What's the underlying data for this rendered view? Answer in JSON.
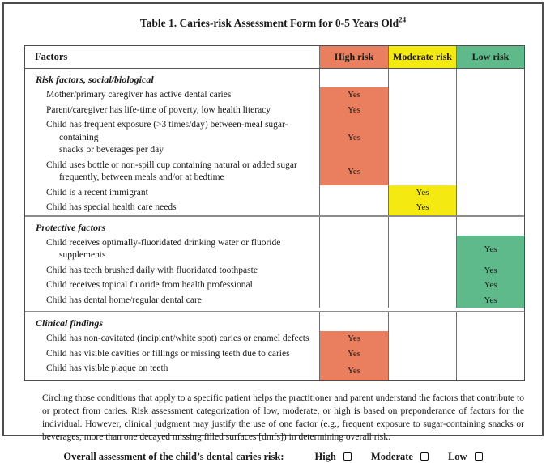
{
  "title": {
    "text": "Table 1.  Caries-risk Assessment Form for 0-5 Years Old",
    "sup": "24"
  },
  "table": {
    "columns": [
      "Factors",
      "High risk",
      "Moderate risk",
      "Low risk"
    ],
    "colors": {
      "high": "#E97F5E",
      "moderate": "#F5E912",
      "low": "#5FBA8B"
    },
    "yes_label": "Yes",
    "sections": [
      {
        "header": "Risk factors, social/biological",
        "rows": [
          {
            "text": "Mother/primary caregiver has active dental caries",
            "risk": "high"
          },
          {
            "text": "Parent/caregiver has life-time of poverty, low health literacy",
            "risk": "high"
          },
          {
            "text": "Child has frequent exposure (>3 times/day) between-meal sugar-containing\nsnacks or beverages per day",
            "risk": "high"
          },
          {
            "text": "Child uses bottle or non-spill cup containing natural or added sugar\nfrequently, between meals and/or at bedtime",
            "risk": "high"
          },
          {
            "text": "Child is a recent immigrant",
            "risk": "moderate"
          },
          {
            "text": "Child has special health care needs",
            "risk": "moderate"
          }
        ]
      },
      {
        "header": "Protective factors",
        "rows": [
          {
            "text": "Child receives optimally-fluoridated drinking water or fluoride supplements",
            "risk": "low"
          },
          {
            "text": "Child has teeth brushed daily with fluoridated toothpaste",
            "risk": "low"
          },
          {
            "text": "Child receives topical fluoride from health professional",
            "risk": "low"
          },
          {
            "text": "Child has dental home/regular dental care",
            "risk": "low"
          }
        ]
      },
      {
        "header": "Clinical findings",
        "rows": [
          {
            "text": "Child has non-cavitated (incipient/white spot) caries or enamel defects",
            "risk": "high"
          },
          {
            "text": "Child has visible cavities or fillings or missing teeth due to caries",
            "risk": "high"
          },
          {
            "text": "Child has visible plaque on teeth",
            "risk": "high"
          }
        ]
      }
    ]
  },
  "footer": {
    "note": "Circling those conditions that apply to a specific patient helps the practitioner and parent understand the factors that contribute to or protect from caries. Risk assessment categorization of low, moderate, or high is based on preponderance of factors for the individual. However, clinical judgment may justify the use of one factor (e.g., frequent exposure to sugar-containing snacks or beverages, more than one decayed missing filled surfaces [dmfs]) in determining overall risk.",
    "overall_label": "Overall assessment of the child’s dental caries risk:",
    "options": [
      "High",
      "Moderate",
      "Low"
    ]
  }
}
